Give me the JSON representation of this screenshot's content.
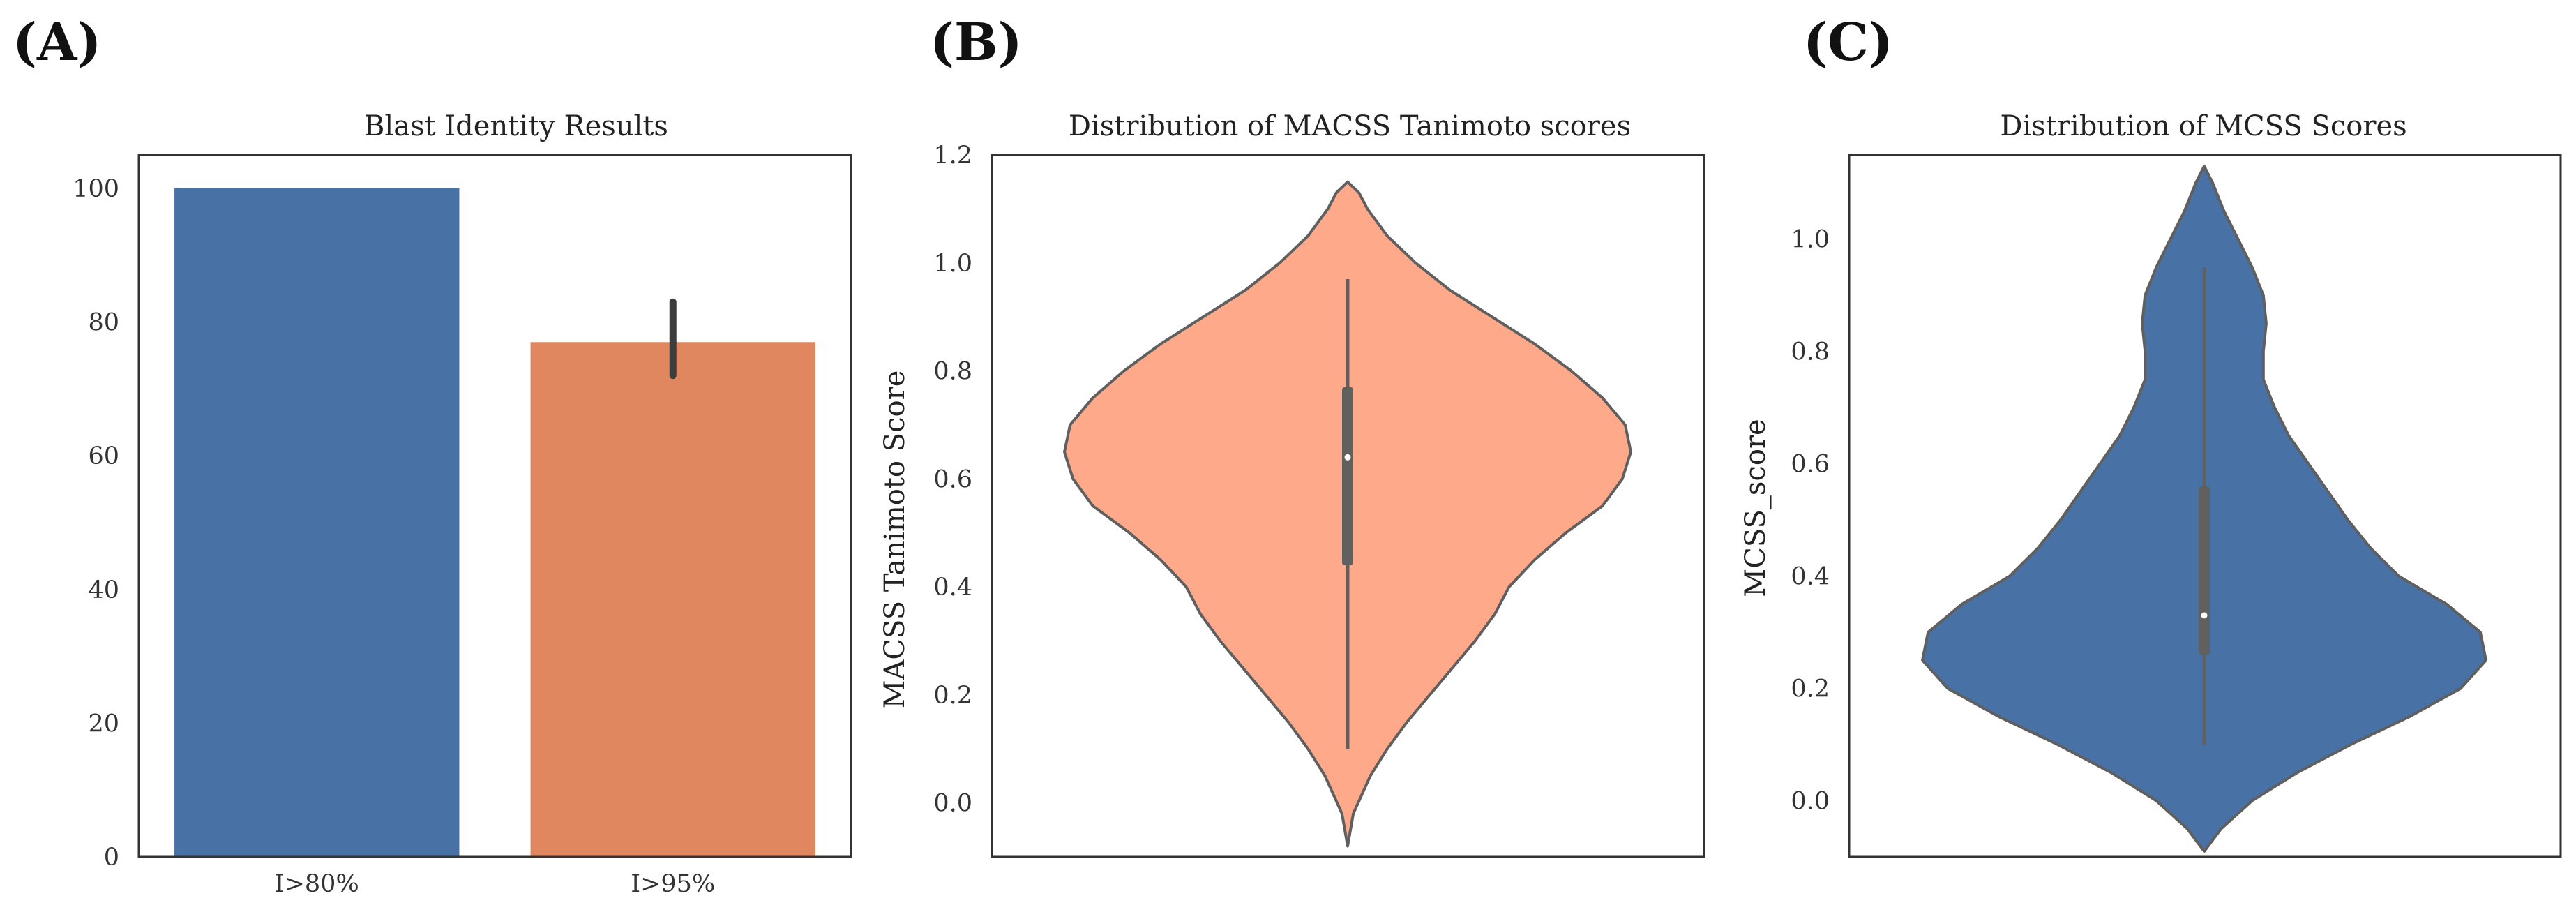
{
  "panels": [
    "(A)",
    "(B)",
    "(C)"
  ],
  "chart_data": [
    {
      "type": "bar",
      "title": "Blast Identity Results",
      "categories": [
        "I>80%",
        "I>95%"
      ],
      "values": [
        100,
        77
      ],
      "error_bars": [
        [
          100,
          100
        ],
        [
          72,
          83
        ]
      ],
      "colors": [
        "#4872A5",
        "#E1875F"
      ],
      "ylim": [
        0,
        105
      ],
      "yticks": [
        0,
        20,
        40,
        60,
        80,
        100
      ],
      "xlabel": "",
      "ylabel": "",
      "grid": false
    },
    {
      "type": "violin",
      "title": "Distribution of MACSS Tanimoto scores",
      "ylabel": "MACSS Tanimoto Score",
      "ylim": [
        -0.1,
        1.2
      ],
      "yticks": [
        "0.0",
        "0.2",
        "0.4",
        "0.6",
        "0.8",
        "1.0",
        "1.2"
      ],
      "color": "#FFA98B",
      "range": [
        -0.08,
        1.15
      ],
      "whisker": [
        0.1,
        0.97
      ],
      "quartiles": [
        0.44,
        0.77
      ],
      "median": 0.64,
      "profile": [
        [
          -0.08,
          0.0
        ],
        [
          -0.02,
          0.02
        ],
        [
          0.05,
          0.08
        ],
        [
          0.1,
          0.14
        ],
        [
          0.15,
          0.21
        ],
        [
          0.2,
          0.29
        ],
        [
          0.25,
          0.37
        ],
        [
          0.3,
          0.45
        ],
        [
          0.35,
          0.52
        ],
        [
          0.4,
          0.57
        ],
        [
          0.45,
          0.66
        ],
        [
          0.5,
          0.77
        ],
        [
          0.55,
          0.9
        ],
        [
          0.6,
          0.97
        ],
        [
          0.65,
          1.0
        ],
        [
          0.7,
          0.98
        ],
        [
          0.75,
          0.9
        ],
        [
          0.8,
          0.79
        ],
        [
          0.85,
          0.66
        ],
        [
          0.9,
          0.51
        ],
        [
          0.95,
          0.36
        ],
        [
          1.0,
          0.24
        ],
        [
          1.05,
          0.14
        ],
        [
          1.1,
          0.07
        ],
        [
          1.13,
          0.04
        ],
        [
          1.15,
          0.0
        ]
      ]
    },
    {
      "type": "violin",
      "title": "Distribution of MCSS Scores",
      "ylabel": "MCSS_score",
      "ylim": [
        -0.1,
        1.15
      ],
      "yticks": [
        "0.0",
        "0.2",
        "0.4",
        "0.6",
        "0.8",
        "1.0"
      ],
      "color": "#4872A5",
      "range": [
        -0.09,
        1.13
      ],
      "whisker": [
        0.1,
        0.95
      ],
      "quartiles": [
        0.26,
        0.56
      ],
      "median": 0.33,
      "profile": [
        [
          -0.09,
          0.0
        ],
        [
          -0.05,
          0.06
        ],
        [
          0.0,
          0.17
        ],
        [
          0.05,
          0.33
        ],
        [
          0.1,
          0.52
        ],
        [
          0.15,
          0.73
        ],
        [
          0.2,
          0.91
        ],
        [
          0.25,
          1.0
        ],
        [
          0.3,
          0.98
        ],
        [
          0.35,
          0.86
        ],
        [
          0.4,
          0.69
        ],
        [
          0.45,
          0.59
        ],
        [
          0.5,
          0.51
        ],
        [
          0.55,
          0.44
        ],
        [
          0.6,
          0.37
        ],
        [
          0.65,
          0.3
        ],
        [
          0.7,
          0.25
        ],
        [
          0.75,
          0.21
        ],
        [
          0.8,
          0.21
        ],
        [
          0.85,
          0.22
        ],
        [
          0.9,
          0.21
        ],
        [
          0.95,
          0.17
        ],
        [
          1.0,
          0.12
        ],
        [
          1.05,
          0.07
        ],
        [
          1.1,
          0.03
        ],
        [
          1.13,
          0.0
        ]
      ]
    }
  ]
}
